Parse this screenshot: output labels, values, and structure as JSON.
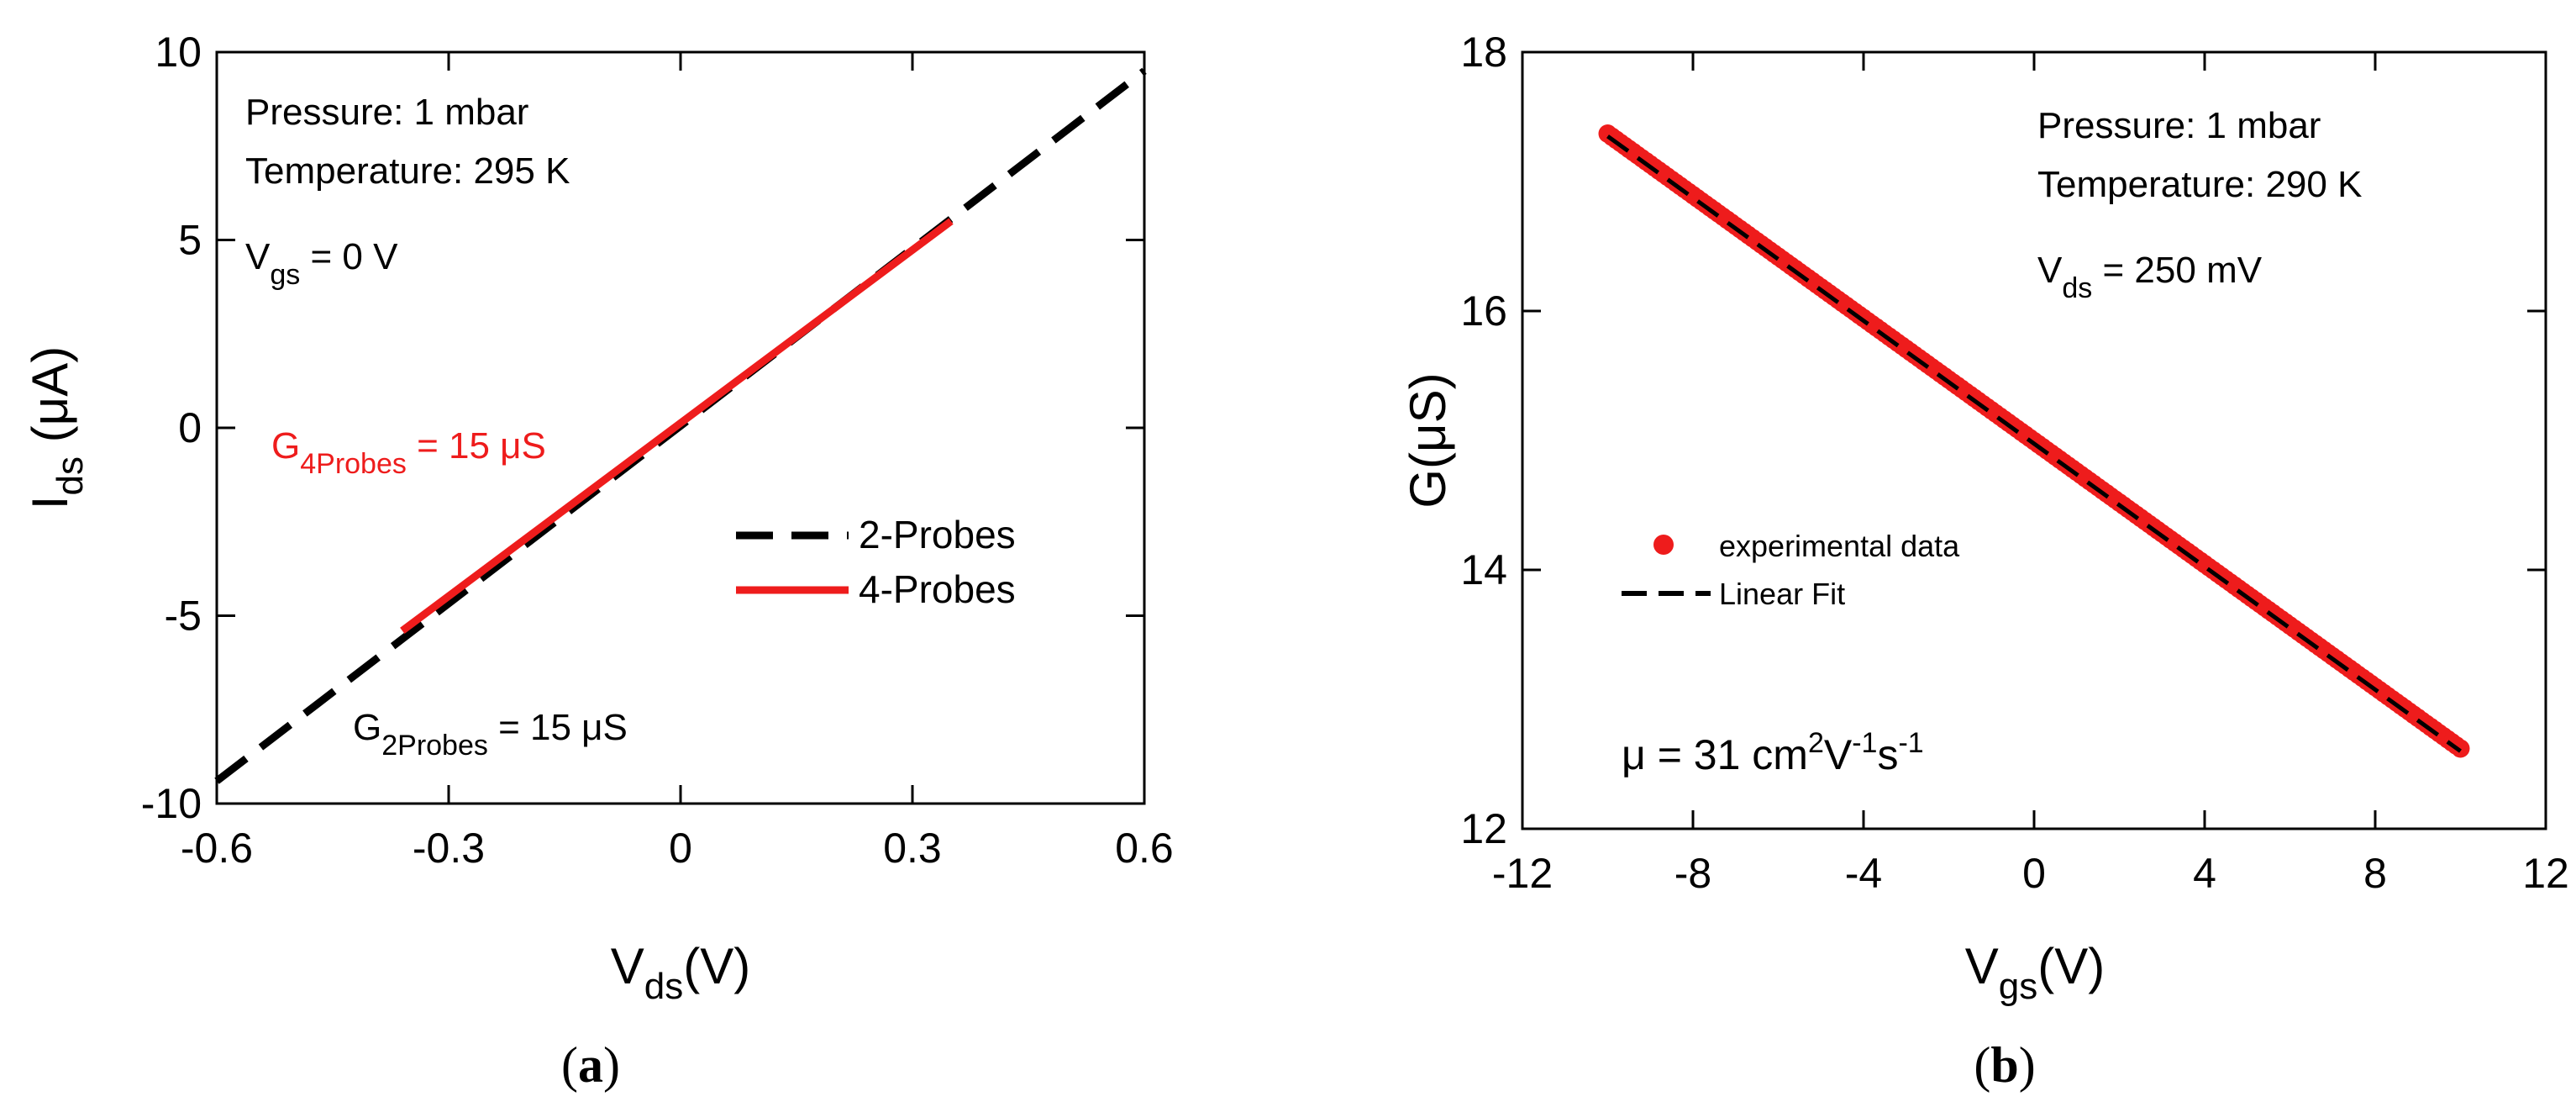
{
  "charts": [
    {
      "id": "a",
      "panel_label": "(a)",
      "panel_letter": "a",
      "xlabel": "V",
      "xlabel_sub": "ds",
      "xlabel_unit": "(V)",
      "ylabel": "I",
      "ylabel_sub": "ds",
      "ylabel_unit": " (μA)",
      "annotations": {
        "line1": "Pressure: 1 mbar",
        "line2": "Temperature: 295 K",
        "gate_main": "V",
        "gate_sub": "gs",
        "gate_value": " = 0 V",
        "g4_main": "G",
        "g4_sub": "4Probes",
        "g4_value": " = 15 μS",
        "g2_main": "G",
        "g2_sub": "2Probes",
        "g2_value": " = 15 μS"
      },
      "legend": [
        "2-Probes",
        "4-Probes"
      ],
      "chart_data": {
        "type": "line",
        "xlim": [
          -0.6,
          0.6
        ],
        "ylim": [
          -10,
          10
        ],
        "xticks": [
          "-0.6",
          "-0.3",
          "0",
          "0.3",
          "0.6"
        ],
        "xtick_values": [
          -0.6,
          -0.3,
          0,
          0.3,
          0.6
        ],
        "yticks": [
          "-10",
          "-5",
          "0",
          "5",
          "10"
        ],
        "ytick_values": [
          -10,
          -5,
          0,
          5,
          10
        ],
        "series": [
          {
            "name": "2-Probes",
            "color": "#000000",
            "style": "dashed",
            "x": [
              -0.6,
              0.6
            ],
            "y": [
              -9.4,
              9.5
            ]
          },
          {
            "name": "4-Probes",
            "color": "#ee1c1c",
            "style": "solid",
            "x": [
              -0.36,
              0.35
            ],
            "y": [
              -5.4,
              5.5
            ]
          }
        ]
      }
    },
    {
      "id": "b",
      "panel_label": "(b)",
      "panel_letter": "b",
      "xlabel": "V",
      "xlabel_sub": "gs",
      "xlabel_unit": "(V)",
      "ylabel": "G(μS)",
      "annotations": {
        "line1": "Pressure: 1 mbar",
        "line2": "Temperature: 290 K",
        "vds_main": "V",
        "vds_sub": "ds",
        "vds_value": " = 250 mV",
        "mu_main": "μ = 31 cm",
        "mu_sup1": "2",
        "mu_mid": "V",
        "mu_sup2": "-1",
        "mu_end": "s",
        "mu_sup3": "-1"
      },
      "legend": [
        "experimental data",
        "Linear Fit"
      ],
      "chart_data": {
        "type": "scatter",
        "xlim": [
          -12,
          12
        ],
        "ylim": [
          12,
          18
        ],
        "xticks": [
          "-12",
          "-8",
          "-4",
          "0",
          "4",
          "8",
          "12"
        ],
        "xtick_values": [
          -12,
          -8,
          -4,
          0,
          4,
          8,
          12
        ],
        "yticks": [
          "12",
          "14",
          "16",
          "18"
        ],
        "ytick_values": [
          12,
          14,
          16,
          18
        ],
        "series": [
          {
            "name": "experimental data",
            "color": "#ee1c1c",
            "style": "markers",
            "x_range": [
              -10,
              10
            ],
            "y_range": [
              17.37,
              12.62
            ]
          },
          {
            "name": "Linear Fit",
            "color": "#000000",
            "style": "dashed",
            "x": [
              -10,
              10
            ],
            "y": [
              17.35,
              12.6
            ]
          }
        ]
      }
    }
  ]
}
